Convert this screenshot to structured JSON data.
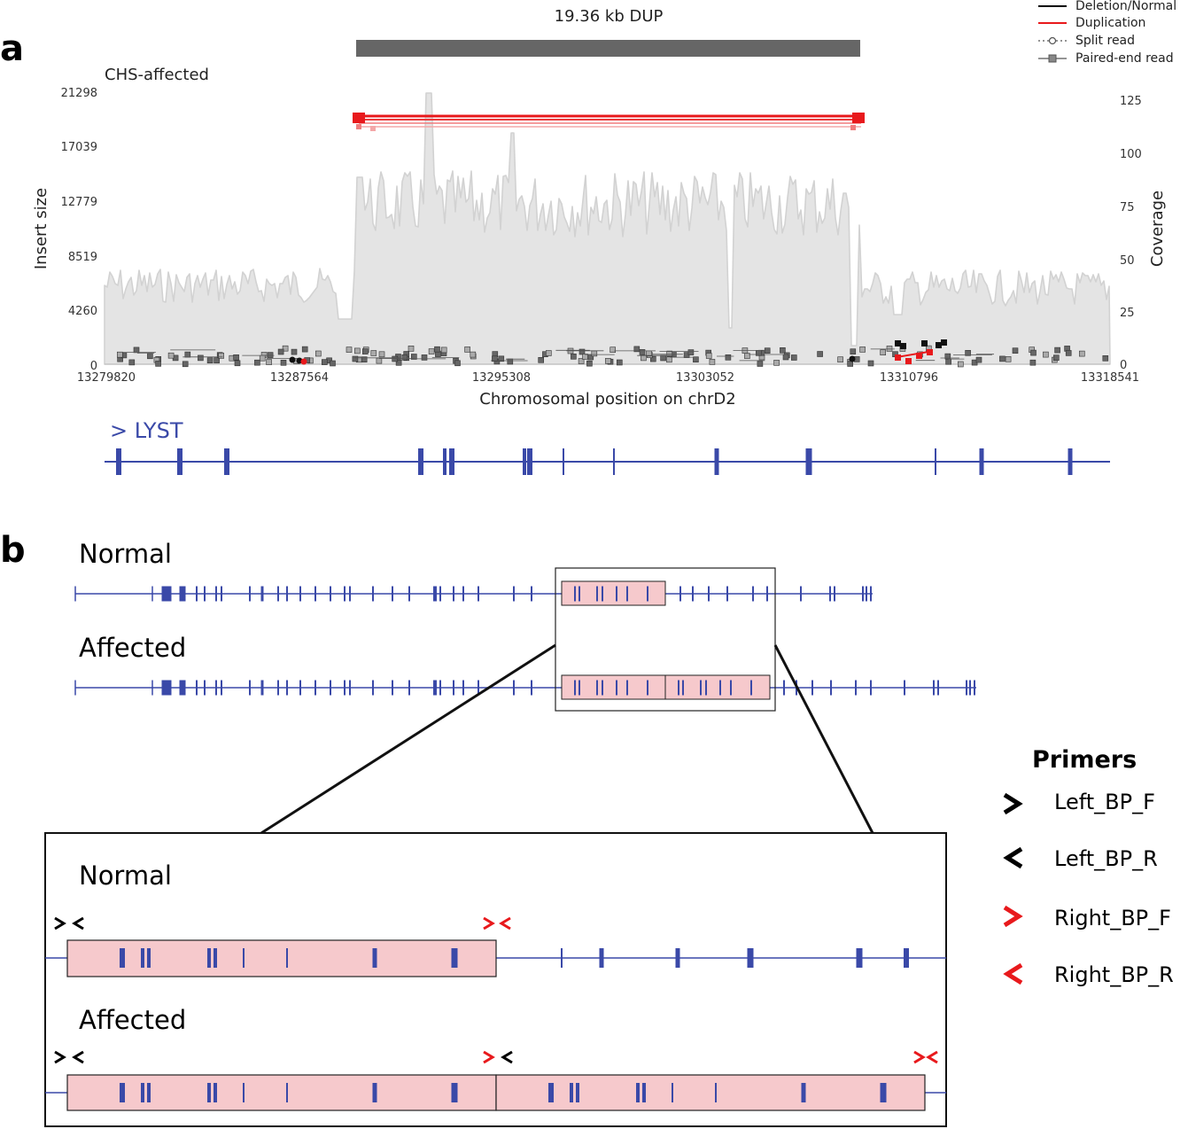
{
  "panel_a": {
    "letter": "a",
    "title": "19.36 kb DUP",
    "sample": "CHS-affected",
    "ylabel_left": "Insert size",
    "ylabel_right": "Coverage",
    "xlabel": "Chromosomal position on chrD2",
    "gene_label": "> LYST",
    "legend": [
      {
        "label": "Deletion/Normal",
        "color": "#000000",
        "style": "line"
      },
      {
        "label": "Duplication",
        "color": "#e8191c",
        "style": "line"
      },
      {
        "label": "Split read",
        "color": "#444444",
        "style": "dotted-circle"
      },
      {
        "label": "Paired-end read",
        "color": "#444444",
        "style": "line-square"
      }
    ],
    "left_ticks": [
      "21298",
      "17039",
      "12779",
      "8519",
      "4260",
      "0"
    ],
    "right_ticks": [
      "125",
      "100",
      "75",
      "50",
      "25",
      "0"
    ],
    "x_ticks": [
      "13279820",
      "13287564",
      "13295308",
      "13303052",
      "13310796",
      "13318541"
    ],
    "colors": {
      "coverage": "#e4e4e4",
      "coverage_line": "#d0d0d0",
      "dup_bar": "#666666",
      "duplication": "#e8191c",
      "gene": "#3a49a8"
    }
  },
  "panel_b": {
    "letter": "b",
    "normal_label": "Normal",
    "affected_label": "Affected",
    "zoom_normal_label": "Normal",
    "zoom_affected_label": "Affected",
    "primers_title": "Primers",
    "primers": [
      {
        "glyph": ">",
        "label": "Left_BP_F",
        "color": "#000000"
      },
      {
        "glyph": "<",
        "label": "Left_BP_R",
        "color": "#000000"
      },
      {
        "glyph": ">",
        "label": "Right_BP_F",
        "color": "#e8191c"
      },
      {
        "glyph": "<",
        "label": "Right_BP_R",
        "color": "#e8191c"
      }
    ],
    "colors": {
      "highlight": "#f6c9cc",
      "gene": "#3a49a8"
    }
  }
}
